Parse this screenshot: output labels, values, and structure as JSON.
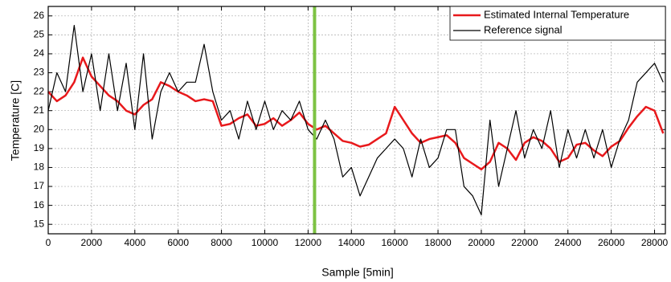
{
  "chart_data": {
    "type": "line",
    "xlabel": "Sample [5min]",
    "ylabel": "Temperature [C]",
    "x": [
      0,
      400,
      800,
      1200,
      1600,
      2000,
      2400,
      2800,
      3200,
      3600,
      4000,
      4400,
      4800,
      5200,
      5600,
      6000,
      6400,
      6800,
      7200,
      7600,
      8000,
      8400,
      8800,
      9200,
      9600,
      10000,
      10400,
      10800,
      11200,
      11600,
      12000,
      12400,
      12800,
      13200,
      13600,
      14000,
      14400,
      14800,
      15200,
      15600,
      16000,
      16400,
      16800,
      17200,
      17600,
      18000,
      18400,
      18800,
      19200,
      19600,
      20000,
      20400,
      20800,
      21200,
      21600,
      22000,
      22400,
      22800,
      23200,
      23600,
      24000,
      24400,
      24800,
      25200,
      25600,
      26000,
      26400,
      26800,
      27200,
      27600,
      28000,
      28400
    ],
    "series": [
      {
        "name": "Estimated Internal Temperature",
        "color": "#e8191c",
        "width": 2.5,
        "values": [
          22,
          21.5,
          21.8,
          22.5,
          23.8,
          22.8,
          22.3,
          21.8,
          21.5,
          21,
          20.8,
          21.3,
          21.6,
          22.5,
          22.3,
          22,
          21.8,
          21.5,
          21.6,
          21.5,
          20.2,
          20.3,
          20.6,
          20.8,
          20.2,
          20.3,
          20.6,
          20.2,
          20.5,
          20.9,
          20.3,
          20,
          20.2,
          19.8,
          19.4,
          19.3,
          19.1,
          19.2,
          19.5,
          19.8,
          21.2,
          20.5,
          19.8,
          19.3,
          19.5,
          19.6,
          19.7,
          19.3,
          18.5,
          18.2,
          17.9,
          18.3,
          19.3,
          19,
          18.4,
          19.3,
          19.6,
          19.4,
          19,
          18.3,
          18.5,
          19.2,
          19.3,
          18.9,
          18.6,
          19.1,
          19.4,
          20.1,
          20.7,
          21.2,
          21,
          19.8
        ]
      },
      {
        "name": "Reference signal",
        "color": "#000000",
        "width": 1.2,
        "values": [
          21,
          23,
          22,
          25.5,
          22,
          24,
          21,
          24,
          21,
          23.5,
          20,
          24,
          19.5,
          22,
          23,
          22,
          22.5,
          22.5,
          24.5,
          22,
          20.5,
          21,
          19.5,
          21.5,
          20,
          21.5,
          20,
          21,
          20.5,
          21.5,
          20,
          19.5,
          20.5,
          19.5,
          17.5,
          18,
          16.5,
          17.5,
          18.5,
          19,
          19.5,
          19,
          17.5,
          19.5,
          18,
          18.5,
          20,
          20,
          17,
          16.5,
          15.5,
          20.5,
          17,
          19,
          21,
          18.5,
          20,
          19,
          21,
          18,
          20,
          18.5,
          20,
          18.5,
          20,
          18,
          19.5,
          20.5,
          22.5,
          23,
          23.5,
          22.5
        ]
      }
    ],
    "vline": 12300,
    "vline_color": "#7dc243",
    "xlim": [
      0,
      28500
    ],
    "xticks": [
      0,
      2000,
      4000,
      6000,
      8000,
      10000,
      12000,
      14000,
      16000,
      18000,
      20000,
      22000,
      24000,
      26000,
      28000
    ],
    "ylim": [
      14.5,
      26.5
    ],
    "yticks": [
      15,
      16,
      17,
      18,
      19,
      20,
      21,
      22,
      23,
      24,
      25,
      26
    ],
    "grid": true,
    "legend": "upper-right"
  }
}
